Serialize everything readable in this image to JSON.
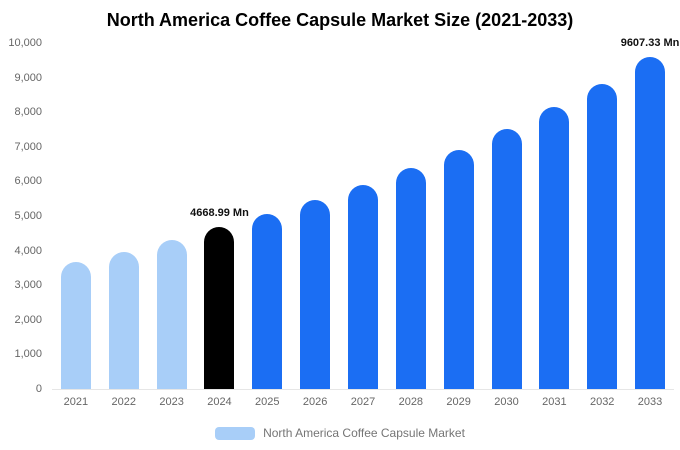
{
  "page": {
    "title": "North America Coffee Capsule Market Size (2021-2033)"
  },
  "chart_data": {
    "type": "bar",
    "title": "North America Coffee Capsule Market Size (2021-2033)",
    "categories": [
      "2021",
      "2022",
      "2023",
      "2024",
      "2025",
      "2026",
      "2027",
      "2028",
      "2029",
      "2030",
      "2031",
      "2032",
      "2033"
    ],
    "values": [
      3670,
      3960,
      4300,
      4668.99,
      5060,
      5460,
      5900,
      6390,
      6910,
      7510,
      8150,
      8820,
      9607.33
    ],
    "unit": "Mn",
    "xlabel": "",
    "ylabel": "",
    "ylim": [
      0,
      10000
    ],
    "ytick_step": 1000,
    "ytick_labels": [
      "0",
      "1,000",
      "2,000",
      "3,000",
      "4,000",
      "5,000",
      "6,000",
      "7,000",
      "8,000",
      "9,000",
      "10,000"
    ],
    "grid": false,
    "legend_position": "bottom",
    "legend": [
      {
        "label": "North America Coffee Capsule Market",
        "color": "#a8cef8"
      }
    ],
    "colors": {
      "historical": "#a8cef8",
      "highlight": "#000000",
      "forecast": "#1b6ef3"
    },
    "bar_colors": [
      "#a8cef8",
      "#a8cef8",
      "#a8cef8",
      "#000000",
      "#1b6ef3",
      "#1b6ef3",
      "#1b6ef3",
      "#1b6ef3",
      "#1b6ef3",
      "#1b6ef3",
      "#1b6ef3",
      "#1b6ef3",
      "#1b6ef3"
    ],
    "annotations": [
      {
        "category": "2024",
        "index": 3,
        "text": "4668.99 Mn"
      },
      {
        "category": "2033",
        "index": 12,
        "text": "9607.33 Mn"
      }
    ]
  }
}
